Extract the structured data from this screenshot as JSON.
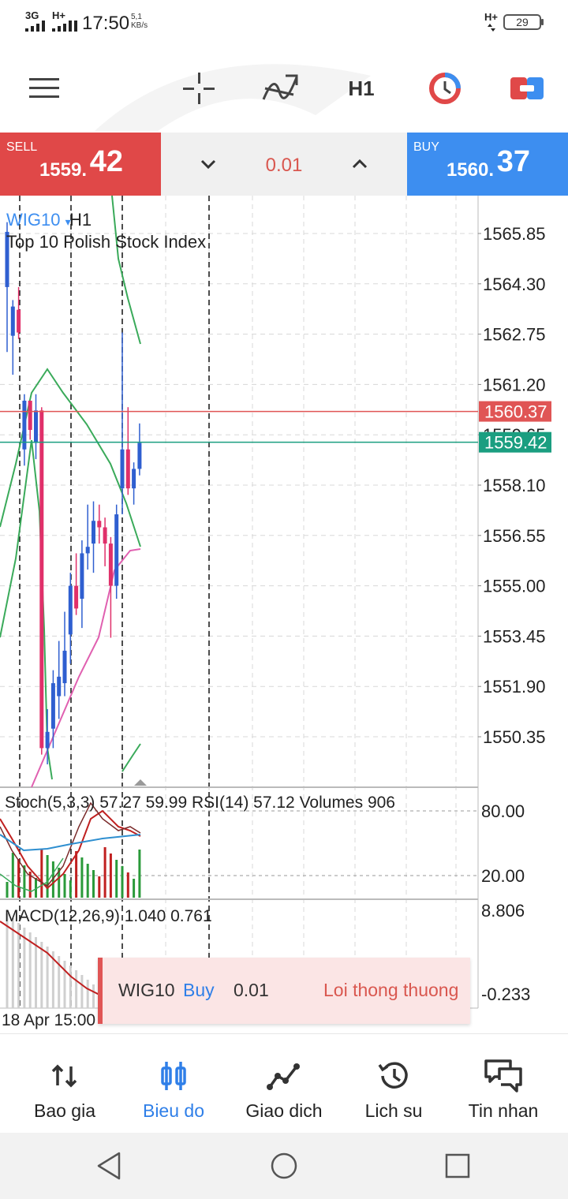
{
  "status_bar": {
    "network_left_1": "3G",
    "network_left_2": "H+",
    "time": "17:50",
    "speed_value": "5,1",
    "speed_unit": "KB/s",
    "network_right": "H+",
    "battery": "29"
  },
  "toolbar": {
    "timeframe": "H1"
  },
  "trade": {
    "sell_label": "SELL",
    "sell_price_main": "1559.",
    "sell_price_big": "42",
    "lot": "0.01",
    "buy_label": "BUY",
    "buy_price_main": "1560.",
    "buy_price_big": "37"
  },
  "chart": {
    "symbol": "WIG10",
    "symbol_arrow": "▾",
    "timeframe": "H1",
    "description": "Top 10 Polish Stock Index",
    "stoch_label": "Stoch(5,3,3) 57.27 59.99 RSI(14) 57.12 Volumes 906",
    "macd_label": "MACD(12,26,9) 1.040 0.761",
    "date_label": "18 Apr 15:00",
    "colors": {
      "bull": "#2f5fd0",
      "bear": "#e0306a",
      "ask_line": "#e05555",
      "bid_line": "#1a9e80",
      "ma_green": "#3aaa5a",
      "ma_pink": "#e060b0",
      "grid": "#d8d8d8"
    }
  },
  "chart_data": {
    "type": "candlestick",
    "price_axis": [
      "1565.85",
      "1564.30",
      "1562.75",
      "1561.20",
      "1559.65",
      "1558.10",
      "1556.55",
      "1555.00",
      "1553.45",
      "1551.90",
      "1550.35"
    ],
    "ask_price": "1560.37",
    "bid_price": "1559.42",
    "stoch_axis": [
      "80.00",
      "20.00"
    ],
    "macd_axis": [
      "8.806",
      "-0.233"
    ],
    "candles": [
      {
        "o": 1564.2,
        "h": 1566.2,
        "l": 1562.2,
        "c": 1565.9
      },
      {
        "o": 1562.7,
        "h": 1563.8,
        "l": 1561.5,
        "c": 1563.6
      },
      {
        "o": 1563.5,
        "h": 1564.2,
        "l": 1562.6,
        "c": 1562.8
      },
      {
        "o": 1559.2,
        "h": 1560.9,
        "l": 1558.7,
        "c": 1560.7
      },
      {
        "o": 1560.7,
        "h": 1560.7,
        "l": 1559.5,
        "c": 1559.8
      },
      {
        "o": 1559.4,
        "h": 1560.9,
        "l": 1558.9,
        "c": 1560.4
      },
      {
        "o": 1560.4,
        "h": 1560.5,
        "l": 1549.8,
        "c": 1550.0
      },
      {
        "o": 1550.0,
        "h": 1551.2,
        "l": 1549.5,
        "c": 1550.5
      },
      {
        "o": 1550.6,
        "h": 1552.4,
        "l": 1550.0,
        "c": 1552.0
      },
      {
        "o": 1551.6,
        "h": 1553.3,
        "l": 1550.9,
        "c": 1552.2
      },
      {
        "o": 1552.0,
        "h": 1554.2,
        "l": 1551.6,
        "c": 1553.0
      },
      {
        "o": 1553.5,
        "h": 1555.4,
        "l": 1552.6,
        "c": 1555.0
      },
      {
        "o": 1555.0,
        "h": 1556.0,
        "l": 1554.1,
        "c": 1554.3
      },
      {
        "o": 1554.6,
        "h": 1556.4,
        "l": 1553.7,
        "c": 1556.0
      },
      {
        "o": 1556.0,
        "h": 1557.5,
        "l": 1555.5,
        "c": 1556.2
      },
      {
        "o": 1556.3,
        "h": 1557.6,
        "l": 1555.4,
        "c": 1557.0
      },
      {
        "o": 1557.0,
        "h": 1557.5,
        "l": 1556.3,
        "c": 1556.8
      },
      {
        "o": 1556.8,
        "h": 1557.1,
        "l": 1555.6,
        "c": 1556.3
      },
      {
        "o": 1556.3,
        "h": 1556.5,
        "l": 1553.4,
        "c": 1555.0
      },
      {
        "o": 1555.0,
        "h": 1557.5,
        "l": 1554.6,
        "c": 1557.2
      },
      {
        "o": 1558.0,
        "h": 1562.8,
        "l": 1557.2,
        "c": 1559.2
      },
      {
        "o": 1559.2,
        "h": 1560.5,
        "l": 1557.8,
        "c": 1558.0
      },
      {
        "o": 1558.0,
        "h": 1558.8,
        "l": 1557.5,
        "c": 1558.6
      },
      {
        "o": 1558.6,
        "h": 1560.0,
        "l": 1558.4,
        "c": 1559.4
      }
    ]
  },
  "order_toast": {
    "symbol": "WIG10",
    "side": "Buy",
    "lot": "0.01",
    "status": "Loi thong thuong"
  },
  "bottom_nav": {
    "items": [
      {
        "label": "Bao gia",
        "icon": "quotes-arrows-icon"
      },
      {
        "label": "Bieu do",
        "icon": "chart-candles-icon"
      },
      {
        "label": "Giao dich",
        "icon": "trade-line-icon"
      },
      {
        "label": "Lich su",
        "icon": "history-clock-icon"
      },
      {
        "label": "Tin nhan",
        "icon": "messages-icon"
      }
    ]
  }
}
